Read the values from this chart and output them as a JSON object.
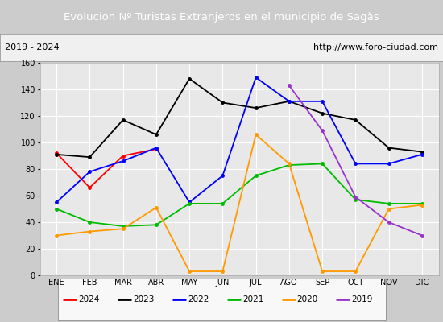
{
  "title": "Evolucion Nº Turistas Extranjeros en el municipio de Sagàs",
  "subtitle_left": "2019 - 2024",
  "subtitle_right": "http://www.foro-ciudad.com",
  "title_bg_color": "#4d7ebf",
  "title_text_color": "#ffffff",
  "months": [
    "ENE",
    "FEB",
    "MAR",
    "ABR",
    "MAY",
    "JUN",
    "JUL",
    "AGO",
    "SEP",
    "OCT",
    "NOV",
    "DIC"
  ],
  "ylim": [
    0,
    160
  ],
  "yticks": [
    0,
    20,
    40,
    60,
    80,
    100,
    120,
    140,
    160
  ],
  "series": {
    "2024": {
      "color": "#ff0000",
      "data": [
        92,
        66,
        90,
        95,
        null,
        null,
        null,
        null,
        null,
        null,
        null,
        null
      ]
    },
    "2023": {
      "color": "#000000",
      "data": [
        91,
        89,
        117,
        106,
        148,
        130,
        126,
        131,
        122,
        117,
        96,
        93
      ]
    },
    "2022": {
      "color": "#0000ff",
      "data": [
        55,
        78,
        86,
        96,
        55,
        75,
        149,
        131,
        131,
        84,
        84,
        91
      ]
    },
    "2021": {
      "color": "#00bb00",
      "data": [
        50,
        40,
        37,
        38,
        54,
        54,
        75,
        83,
        84,
        57,
        54,
        54
      ]
    },
    "2020": {
      "color": "#ff9900",
      "data": [
        30,
        33,
        35,
        51,
        3,
        3,
        106,
        84,
        3,
        3,
        50,
        53
      ]
    },
    "2019": {
      "color": "#9933cc",
      "data": [
        null,
        null,
        null,
        null,
        null,
        null,
        null,
        143,
        109,
        59,
        40,
        30
      ]
    }
  },
  "legend_order": [
    "2024",
    "2023",
    "2022",
    "2021",
    "2020",
    "2019"
  ],
  "plot_bg_color": "#e8e8e8",
  "outer_bg_color": "#cccccc",
  "subtitle_bg_color": "#f0f0f0",
  "grid_color": "#ffffff"
}
